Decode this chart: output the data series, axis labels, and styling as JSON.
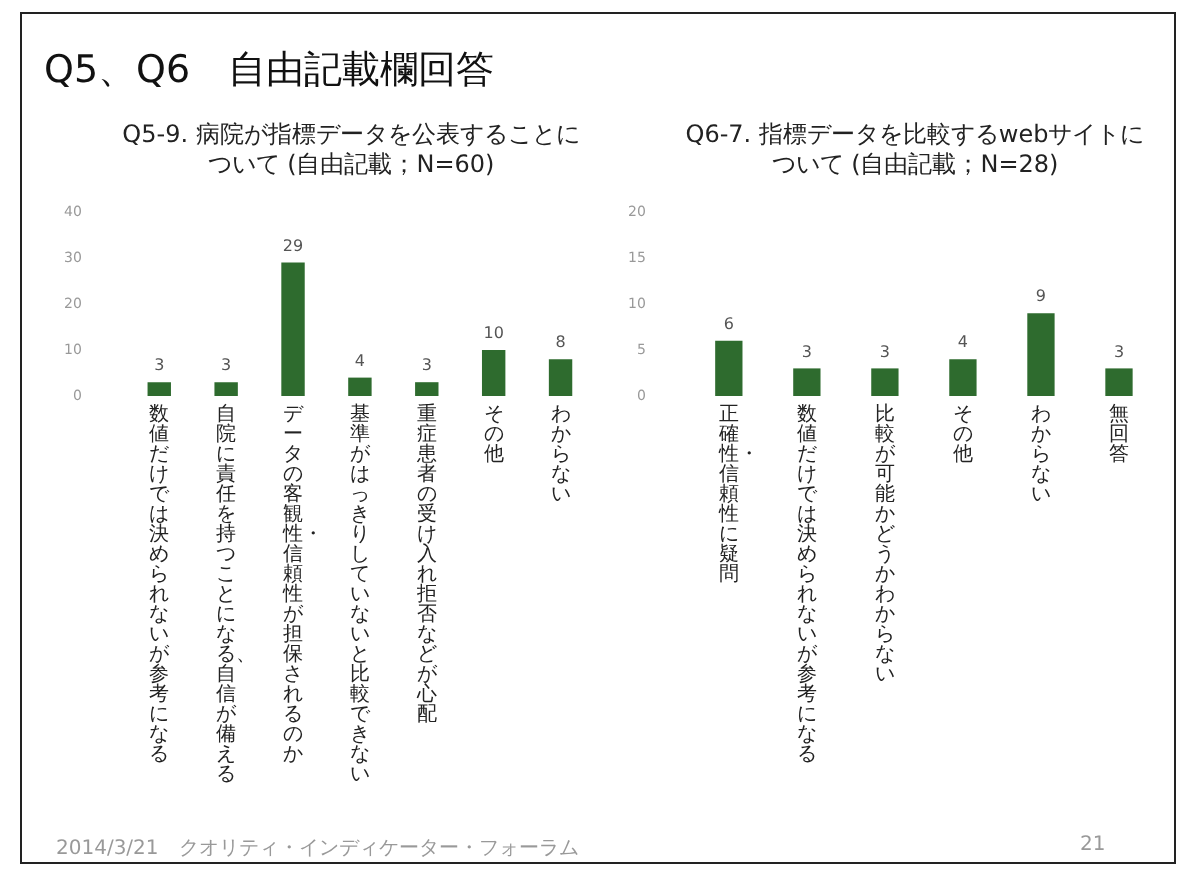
{
  "chart_data": [
    {
      "type": "other",
      "title": "Q5、Q6　自由記載欄回答",
      "annotations": [
        "2014/3/21　クオリティ・インディケーター・フォーラム",
        "21"
      ]
    },
    {
      "type": "bar",
      "title": "Q5-9. 病院が指標データを公表することについて (自由記載；N=60)",
      "categories": [
        "数値だけでは決められないが参考になる",
        "自院に責任を持つことになる、自信が備える",
        "データの客観性・信頼性が担保されるのか",
        "基準がはっきりしていないと比較できない",
        "重症患者の受け入れ拒否などが心配",
        "その他",
        "わからない"
      ],
      "values": [
        3,
        3,
        29,
        4,
        3,
        10,
        8
      ],
      "color": "#2e6b2e",
      "ylim": [
        0,
        40
      ],
      "yticks": [
        0,
        10,
        20,
        30,
        40
      ],
      "data_labels": true
    },
    {
      "type": "bar",
      "title": "Q6-7. 指標データを比較するwebサイトについて (自由記載；N=28)",
      "categories": [
        "正確性・信頼性に疑問",
        "数値だけでは決められないが参考になる",
        "比較が可能かどうかわからない",
        "その他",
        "わからない",
        "無回答"
      ],
      "values": [
        6,
        3,
        3,
        4,
        9,
        3
      ],
      "color": "#2e6b2e",
      "ylim": [
        0,
        20
      ],
      "yticks": [
        0,
        5,
        10,
        15,
        20
      ],
      "data_labels": true
    }
  ]
}
